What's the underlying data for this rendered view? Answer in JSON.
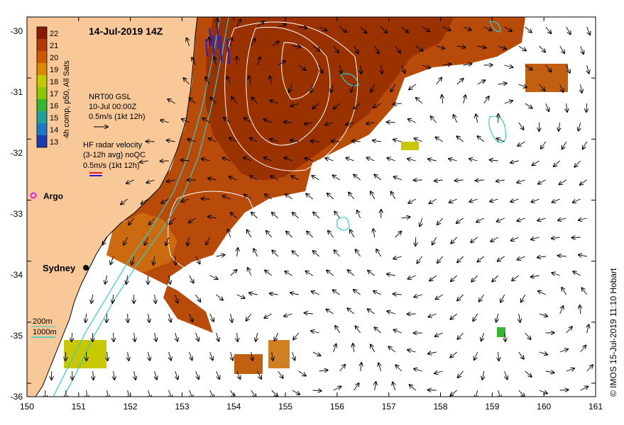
{
  "title": "14-Jul-2019 14Z",
  "colorbar": {
    "label": "4h comp, p50, All Sats",
    "ticks": [
      "22",
      "21",
      "20",
      "19",
      "18",
      "17",
      "16",
      "15",
      "14",
      "13"
    ],
    "colors": [
      "#8B1A00",
      "#B23A00",
      "#CC5A00",
      "#D98A00",
      "#C8C800",
      "#8CC800",
      "#33B833",
      "#1E9E9E",
      "#1E78C8",
      "#1C3CB4"
    ]
  },
  "legend": {
    "nrt_title": "NRT00 GSL",
    "nrt_date": "10-Jul 00:00Z",
    "nrt_scale": "0.5m/s (1kt 12h)",
    "hf_title": "HF radar velocity",
    "hf_detail": "(3-12h avg) noQC",
    "hf_scale": "0.5m/s (1kt 12h)",
    "argo_label": "Argo",
    "sydney_label": "Sydney",
    "depth_200": "200m",
    "depth_1000": "1000m"
  },
  "axes": {
    "x_ticks": [
      "150",
      "151",
      "152",
      "153",
      "154",
      "155",
      "156",
      "157",
      "158",
      "159",
      "160",
      "161"
    ],
    "y_ticks": [
      "-30",
      "-31",
      "-32",
      "-33",
      "-34",
      "-35",
      "-36"
    ]
  },
  "credit": "© IMOS 15-Jul-2019 11:10 Hobart",
  "colors": {
    "land": "#F8C898",
    "ocean": "#FFFFFF",
    "warm_sst": "#B84A0A",
    "hot_sst": "#8E2A00",
    "isobath": "#33CCCC",
    "ssh_contour": "#FFFFFF",
    "hf_radar": "#1E1EDC",
    "argo": "#E020E0"
  }
}
